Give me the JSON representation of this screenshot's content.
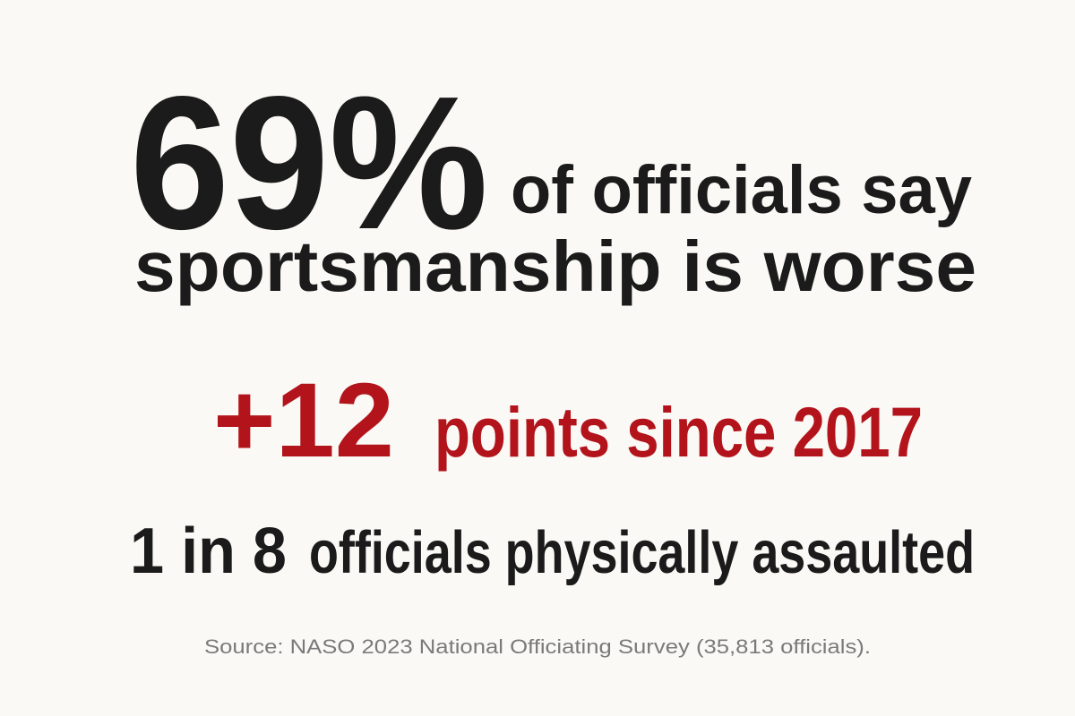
{
  "headline": {
    "stat": "69%",
    "text_line1": "of officials say",
    "text_line2": "sportsmanship is worse"
  },
  "change": {
    "stat": "+12",
    "text": "points since 2017"
  },
  "assault": {
    "stat": "1 in 8",
    "text": "officials physically assaulted"
  },
  "source": "Source: NASO 2023 National Officiating Survey (35,813 officials)."
}
